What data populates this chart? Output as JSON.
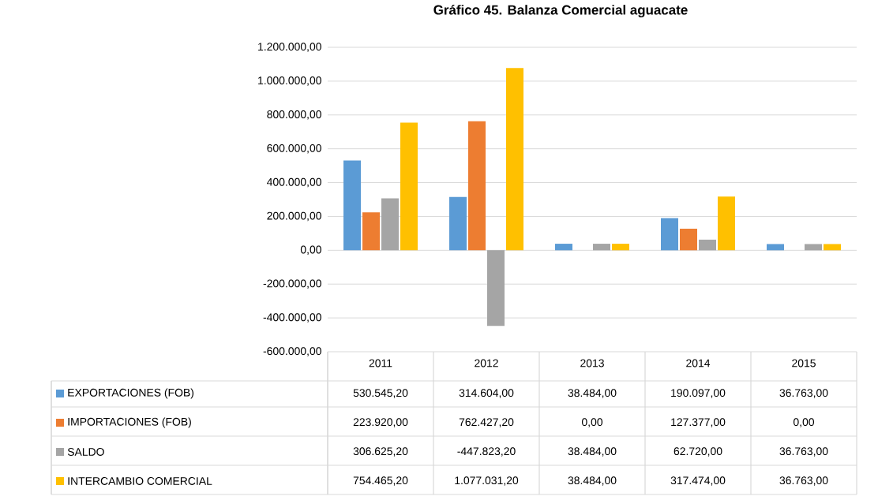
{
  "chart_data": {
    "type": "bar",
    "title": "Gráfico 45. Balanza Comercial aguacate",
    "categories": [
      "2011",
      "2012",
      "2013",
      "2014",
      "2015"
    ],
    "series": [
      {
        "name": "EXPORTACIONES (FOB)",
        "color": "#5b9bd5",
        "values": [
          530545.2,
          314604.0,
          38484.0,
          190097.0,
          36763.0
        ],
        "value_labels": [
          "530.545,20",
          "314.604,00",
          "38.484,00",
          "190.097,00",
          "36.763,00"
        ]
      },
      {
        "name": "IMPORTACIONES (FOB)",
        "color": "#ed7d31",
        "values": [
          223920.0,
          762427.2,
          0.0,
          127377.0,
          0.0
        ],
        "value_labels": [
          "223.920,00",
          "762.427,20",
          "0,00",
          "127.377,00",
          "0,00"
        ]
      },
      {
        "name": "SALDO",
        "color": "#a5a5a5",
        "values": [
          306625.2,
          -447823.2,
          38484.0,
          62720.0,
          36763.0
        ],
        "value_labels": [
          "306.625,20",
          "-447.823,20",
          "38.484,00",
          "62.720,00",
          "36.763,00"
        ]
      },
      {
        "name": "INTERCAMBIO COMERCIAL",
        "color": "#ffc000",
        "values": [
          754465.2,
          1077031.2,
          38484.0,
          317474.0,
          36763.0
        ],
        "value_labels": [
          "754.465,20",
          "1.077.031,20",
          "38.484,00",
          "317.474,00",
          "36.763,00"
        ]
      }
    ],
    "ylim": [
      -600000,
      1200000
    ],
    "yticks": [
      {
        "value": -600000,
        "label": "-600.000,00"
      },
      {
        "value": -400000,
        "label": "-400.000,00"
      },
      {
        "value": -200000,
        "label": "-200.000,00"
      },
      {
        "value": 0,
        "label": "0,00"
      },
      {
        "value": 200000,
        "label": "200.000,00"
      },
      {
        "value": 400000,
        "label": "400.000,00"
      },
      {
        "value": 600000,
        "label": "600.000,00"
      },
      {
        "value": 800000,
        "label": "800.000,00"
      },
      {
        "value": 1000000,
        "label": "1.000.000,00"
      },
      {
        "value": 1200000,
        "label": "1.200.000,00"
      }
    ],
    "grid": "y",
    "legend": "bottom"
  }
}
